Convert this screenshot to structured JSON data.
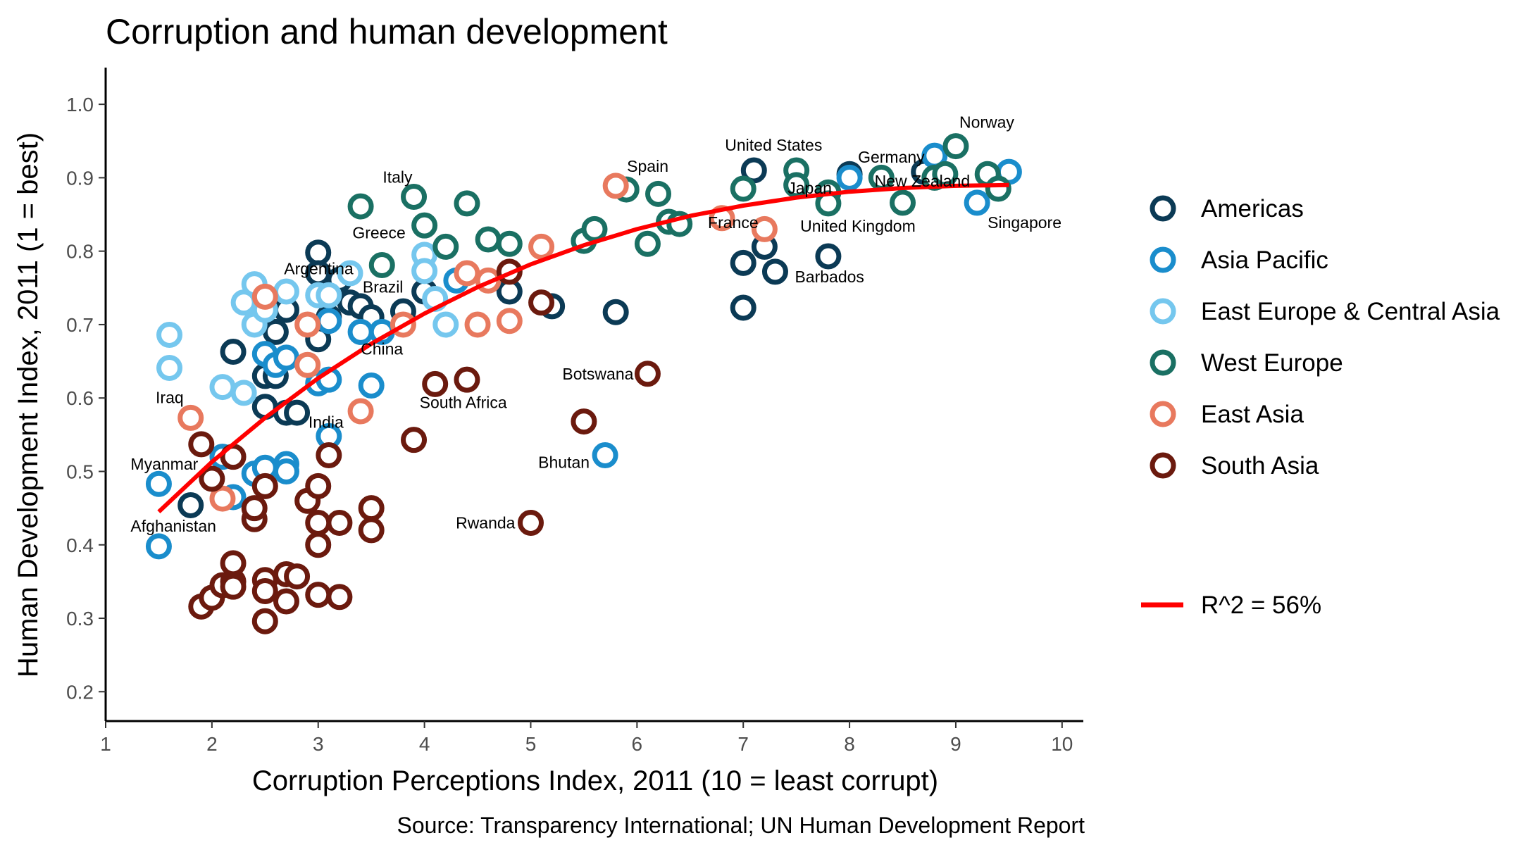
{
  "chart_data": {
    "type": "scatter",
    "title": "Corruption and human development",
    "xlabel": "Corruption Perceptions Index, 2011 (10 = least corrupt)",
    "ylabel": "Human Development Index, 2011 (1 = best)",
    "caption": "Source: Transparency International; UN Human Development Report",
    "xlim": [
      1,
      10.2
    ],
    "ylim": [
      0.16,
      1.05
    ],
    "x_ticks": [
      1,
      2,
      3,
      4,
      5,
      6,
      7,
      8,
      9,
      10
    ],
    "y_ticks": [
      0.2,
      0.3,
      0.4,
      0.5,
      0.6,
      0.7,
      0.8,
      0.9,
      1.0
    ],
    "y_tick_labels": [
      "0.2",
      "0.3",
      "0.4",
      "0.5",
      "0.6",
      "0.7",
      "0.8",
      "0.9",
      "1.0"
    ],
    "grid": false,
    "legend_position": "right",
    "series": [
      {
        "name": "Americas",
        "color": "#0B3A55",
        "points": [
          [
            1.8,
            0.454
          ],
          [
            2.2,
            0.663
          ],
          [
            2.5,
            0.588
          ],
          [
            2.5,
            0.63
          ],
          [
            2.6,
            0.69
          ],
          [
            2.6,
            0.63
          ],
          [
            2.7,
            0.72
          ],
          [
            2.7,
            0.58
          ],
          [
            2.8,
            0.58
          ],
          [
            3.0,
            0.798
          ],
          [
            3.0,
            0.77
          ],
          [
            3.0,
            0.68
          ],
          [
            3.1,
            0.71
          ],
          [
            3.2,
            0.761
          ],
          [
            3.3,
            0.73
          ],
          [
            3.4,
            0.725
          ],
          [
            3.5,
            0.71
          ],
          [
            3.8,
            0.718
          ],
          [
            4.0,
            0.745
          ],
          [
            4.8,
            0.745
          ],
          [
            5.2,
            0.725
          ],
          [
            5.8,
            0.717
          ],
          [
            7.0,
            0.784
          ],
          [
            7.0,
            0.723
          ],
          [
            7.1,
            0.91
          ],
          [
            7.2,
            0.806
          ],
          [
            7.3,
            0.772
          ],
          [
            7.8,
            0.793
          ],
          [
            8.0,
            0.905
          ],
          [
            8.7,
            0.908
          ]
        ]
      },
      {
        "name": "Asia Pacific",
        "color": "#1A8DCC",
        "points": [
          [
            1.5,
            0.483
          ],
          [
            1.5,
            0.398
          ],
          [
            2.1,
            0.52
          ],
          [
            2.2,
            0.465
          ],
          [
            2.4,
            0.497
          ],
          [
            2.5,
            0.505
          ],
          [
            2.5,
            0.66
          ],
          [
            2.6,
            0.645
          ],
          [
            2.7,
            0.51
          ],
          [
            2.7,
            0.5
          ],
          [
            2.7,
            0.655
          ],
          [
            3.0,
            0.62
          ],
          [
            3.1,
            0.548
          ],
          [
            3.1,
            0.625
          ],
          [
            3.1,
            0.705
          ],
          [
            3.4,
            0.69
          ],
          [
            3.5,
            0.617
          ],
          [
            3.6,
            0.69
          ],
          [
            4.3,
            0.76
          ],
          [
            5.7,
            0.522
          ],
          [
            8.0,
            0.9
          ],
          [
            8.8,
            0.93
          ],
          [
            9.2,
            0.866
          ],
          [
            9.5,
            0.908
          ]
        ]
      },
      {
        "name": "East Europe & Central Asia",
        "color": "#75C7EE",
        "points": [
          [
            1.6,
            0.686
          ],
          [
            1.6,
            0.641
          ],
          [
            2.1,
            0.615
          ],
          [
            2.3,
            0.607
          ],
          [
            2.3,
            0.73
          ],
          [
            2.4,
            0.755
          ],
          [
            2.4,
            0.7
          ],
          [
            2.5,
            0.72
          ],
          [
            2.7,
            0.745
          ],
          [
            3.0,
            0.74
          ],
          [
            3.1,
            0.74
          ],
          [
            3.3,
            0.77
          ],
          [
            4.0,
            0.795
          ],
          [
            4.0,
            0.773
          ],
          [
            4.1,
            0.735
          ],
          [
            4.2,
            0.7
          ]
        ]
      },
      {
        "name": "West Europe",
        "color": "#1A7063",
        "points": [
          [
            3.4,
            0.861
          ],
          [
            3.6,
            0.781
          ],
          [
            3.9,
            0.874
          ],
          [
            4.0,
            0.835
          ],
          [
            4.2,
            0.806
          ],
          [
            4.4,
            0.865
          ],
          [
            4.6,
            0.816
          ],
          [
            4.8,
            0.81
          ],
          [
            5.5,
            0.814
          ],
          [
            5.6,
            0.83
          ],
          [
            5.9,
            0.884
          ],
          [
            6.1,
            0.81
          ],
          [
            6.2,
            0.878
          ],
          [
            6.3,
            0.84
          ],
          [
            6.4,
            0.837
          ],
          [
            7.0,
            0.885
          ],
          [
            7.5,
            0.91
          ],
          [
            7.5,
            0.89
          ],
          [
            7.8,
            0.88
          ],
          [
            7.8,
            0.865
          ],
          [
            8.3,
            0.9
          ],
          [
            8.5,
            0.866
          ],
          [
            8.8,
            0.9
          ],
          [
            8.9,
            0.905
          ],
          [
            9.0,
            0.943
          ],
          [
            9.3,
            0.905
          ],
          [
            9.4,
            0.885
          ]
        ]
      },
      {
        "name": "East Asia",
        "color": "#E8795E",
        "points": [
          [
            1.8,
            0.573
          ],
          [
            2.1,
            0.463
          ],
          [
            2.5,
            0.738
          ],
          [
            2.9,
            0.7
          ],
          [
            2.9,
            0.645
          ],
          [
            3.4,
            0.582
          ],
          [
            3.8,
            0.7
          ],
          [
            4.4,
            0.77
          ],
          [
            4.5,
            0.7
          ],
          [
            4.6,
            0.76
          ],
          [
            4.8,
            0.705
          ],
          [
            5.1,
            0.806
          ],
          [
            5.8,
            0.889
          ],
          [
            6.8,
            0.845
          ],
          [
            7.2,
            0.83
          ]
        ]
      },
      {
        "name": "South Asia",
        "color": "#6B1A0E",
        "points": [
          [
            1.9,
            0.316
          ],
          [
            1.9,
            0.537
          ],
          [
            2.0,
            0.328
          ],
          [
            2.0,
            0.49
          ],
          [
            2.1,
            0.345
          ],
          [
            2.2,
            0.52
          ],
          [
            2.2,
            0.35
          ],
          [
            2.2,
            0.375
          ],
          [
            2.2,
            0.343
          ],
          [
            2.4,
            0.435
          ],
          [
            2.4,
            0.45
          ],
          [
            2.5,
            0.352
          ],
          [
            2.5,
            0.48
          ],
          [
            2.5,
            0.296
          ],
          [
            2.5,
            0.337
          ],
          [
            2.7,
            0.36
          ],
          [
            2.7,
            0.323
          ],
          [
            2.8,
            0.357
          ],
          [
            2.9,
            0.46
          ],
          [
            3.0,
            0.48
          ],
          [
            3.0,
            0.43
          ],
          [
            3.0,
            0.4
          ],
          [
            3.0,
            0.332
          ],
          [
            3.1,
            0.522
          ],
          [
            3.2,
            0.43
          ],
          [
            3.2,
            0.329
          ],
          [
            3.5,
            0.45
          ],
          [
            3.5,
            0.42
          ],
          [
            3.9,
            0.543
          ],
          [
            4.1,
            0.619
          ],
          [
            4.4,
            0.625
          ],
          [
            4.8,
            0.772
          ],
          [
            5.1,
            0.73
          ],
          [
            5.0,
            0.43
          ],
          [
            5.5,
            0.568
          ],
          [
            6.1,
            0.633
          ]
        ]
      }
    ],
    "trend_line": {
      "name": "R^2 = 56%",
      "color": "#FF0000",
      "points": [
        [
          1.5,
          0.445
        ],
        [
          2,
          0.513
        ],
        [
          2.5,
          0.573
        ],
        [
          3,
          0.627
        ],
        [
          3.5,
          0.674
        ],
        [
          4,
          0.715
        ],
        [
          4.5,
          0.751
        ],
        [
          5,
          0.782
        ],
        [
          5.5,
          0.808
        ],
        [
          6,
          0.83
        ],
        [
          6.5,
          0.848
        ],
        [
          7,
          0.862
        ],
        [
          7.5,
          0.873
        ],
        [
          8,
          0.881
        ],
        [
          8.5,
          0.886
        ],
        [
          9,
          0.889
        ],
        [
          9.5,
          0.89
        ]
      ]
    },
    "annotations": [
      {
        "text": "Norway",
        "x": 9.0,
        "y": 0.943,
        "anchor": "start",
        "dx": 5,
        "dy": -26
      },
      {
        "text": "Germany",
        "x": 8.0,
        "y": 0.905,
        "anchor": "start",
        "dx": 12,
        "dy": -16
      },
      {
        "text": "United States",
        "x": 7.1,
        "y": 0.91,
        "anchor": "middle",
        "dx": 28,
        "dy": -28
      },
      {
        "text": "Japan",
        "x": 7.8,
        "y": 0.865,
        "anchor": "end",
        "dx": 5,
        "dy": -14
      },
      {
        "text": "New Zealand",
        "x": 9.2,
        "y": 0.905,
        "anchor": "end",
        "dx": -10,
        "dy": 18
      },
      {
        "text": "Singapore",
        "x": 9.2,
        "y": 0.866,
        "anchor": "start",
        "dx": 15,
        "dy": 36
      },
      {
        "text": "United Kingdom",
        "x": 7.8,
        "y": 0.865,
        "anchor": "middle",
        "dx": 42,
        "dy": 40
      },
      {
        "text": "Barbados",
        "x": 7.3,
        "y": 0.772,
        "anchor": "start",
        "dx": 28,
        "dy": 15
      },
      {
        "text": "France",
        "x": 6.8,
        "y": 0.845,
        "anchor": "start",
        "dx": -20,
        "dy": 14
      },
      {
        "text": "Spain",
        "x": 5.8,
        "y": 0.889,
        "anchor": "start",
        "dx": 16,
        "dy": -20
      },
      {
        "text": "Italy",
        "x": 3.9,
        "y": 0.874,
        "anchor": "end",
        "dx": -2,
        "dy": -20
      },
      {
        "text": "Greece",
        "x": 3.4,
        "y": 0.781,
        "anchor": "middle",
        "dx": 26,
        "dy": -38
      },
      {
        "text": "Argentina",
        "x": 3.0,
        "y": 0.761,
        "anchor": "end",
        "dx": 50,
        "dy": -8
      },
      {
        "text": "Brazil",
        "x": 3.8,
        "y": 0.73,
        "anchor": "end",
        "dx": 0,
        "dy": -14
      },
      {
        "text": "China",
        "x": 3.4,
        "y": 0.69,
        "anchor": "start",
        "dx": 0,
        "dy": 32
      },
      {
        "text": "India",
        "x": 3.0,
        "y": 0.59,
        "anchor": "end",
        "dx": 36,
        "dy": 32
      },
      {
        "text": "South Africa",
        "x": 4.1,
        "y": 0.619,
        "anchor": "middle",
        "dx": 40,
        "dy": 34
      },
      {
        "text": "Botswana",
        "x": 6.1,
        "y": 0.633,
        "anchor": "end",
        "dx": -20,
        "dy": 8
      },
      {
        "text": "Iraq",
        "x": 1.8,
        "y": 0.573,
        "anchor": "end",
        "dx": -10,
        "dy": -21
      },
      {
        "text": "Bhutan",
        "x": 5.7,
        "y": 0.522,
        "anchor": "end",
        "dx": -22,
        "dy": 18
      },
      {
        "text": "Myanmar",
        "x": 1.5,
        "y": 0.483,
        "anchor": "start",
        "dx": -40,
        "dy": -20
      },
      {
        "text": "Afghanistan",
        "x": 1.5,
        "y": 0.398,
        "anchor": "start",
        "dx": -40,
        "dy": -21
      },
      {
        "text": "Rwanda",
        "x": 5.0,
        "y": 0.43,
        "anchor": "end",
        "dx": -22,
        "dy": 8
      }
    ]
  }
}
